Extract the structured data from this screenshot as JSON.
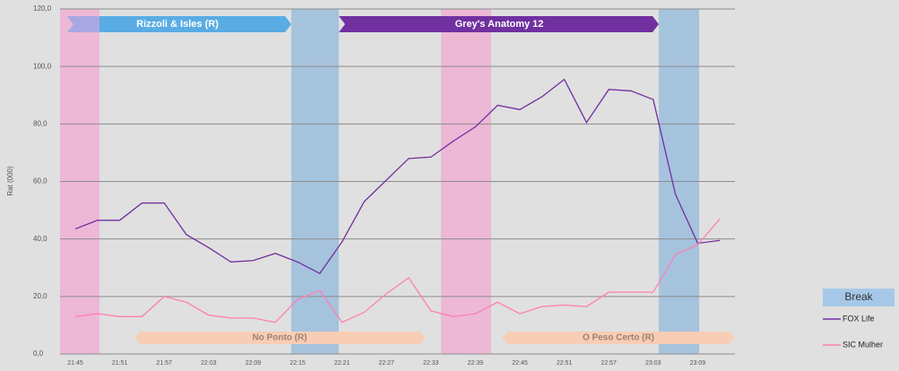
{
  "chart_data": {
    "type": "line",
    "y_label": "Rat (000)",
    "categories": [
      "21:45",
      null,
      "21:51",
      null,
      "21:57",
      null,
      "22:03",
      null,
      "22:09",
      null,
      "22:15",
      null,
      "22:21",
      null,
      "22:27",
      null,
      "22:33",
      null,
      "22:39",
      null,
      "22:45",
      null,
      "22:51",
      null,
      "22:57",
      null,
      "23:03",
      null,
      "23:09",
      null
    ],
    "series": [
      {
        "name": "FOX Life",
        "color": "#7030a0",
        "values": [
          43.5,
          46.5,
          46.5,
          52.5,
          52.5,
          41.5,
          37,
          32,
          32.5,
          35,
          32,
          28,
          39,
          53,
          60.5,
          68,
          68.5,
          74,
          79,
          86.5,
          85,
          89.5,
          95.5,
          80.5,
          92,
          91.5,
          88.5,
          55.5,
          38.5,
          39.5
        ]
      },
      {
        "name": "SIC Mulher",
        "color": "#ff7fb0",
        "values": [
          13,
          14,
          13,
          13,
          20,
          18,
          13.5,
          12.5,
          12.5,
          11,
          19,
          22,
          11,
          14.5,
          21,
          26.5,
          15,
          13,
          14,
          18,
          14,
          16.5,
          17,
          16.5,
          21.5,
          21.5,
          21.5,
          34.5,
          38,
          47
        ]
      }
    ],
    "ylim": [
      0,
      120
    ],
    "yticks": [
      {
        "value": 0,
        "label": "0,0"
      },
      {
        "value": 20,
        "label": "20,0"
      },
      {
        "value": 40,
        "label": "40,0"
      },
      {
        "value": 60,
        "label": "60,0"
      },
      {
        "value": 80,
        "label": "80,0"
      },
      {
        "value": 100,
        "label": "100,0"
      },
      {
        "value": 120,
        "label": "120,0"
      }
    ],
    "grid": true,
    "band_legend": "Break",
    "programs_top": [
      "Rizzoli & Isles  (R)",
      "Grey's Anatomy 12"
    ],
    "programs_bottom": [
      "No Ponto (R)",
      "O Peso Certo (R)"
    ]
  }
}
